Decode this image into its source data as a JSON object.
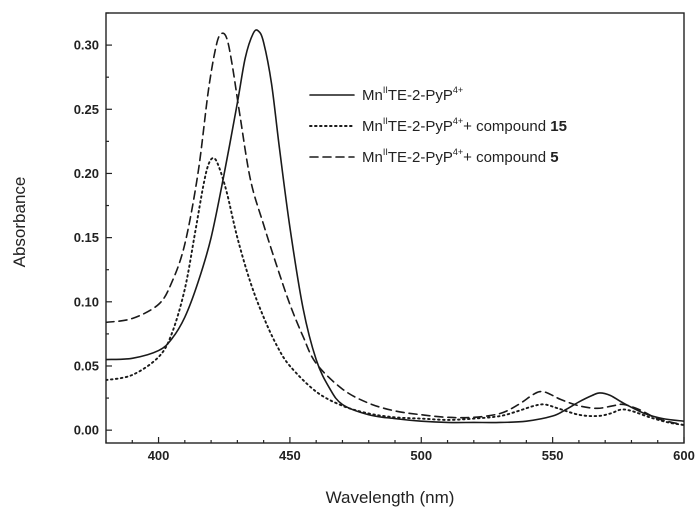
{
  "chart_data": {
    "type": "line",
    "xlabel": "Wavelength (nm)",
    "ylabel": "Absorbance",
    "xlim": [
      380,
      600
    ],
    "ylim": [
      -0.01,
      0.325
    ],
    "xticks": [
      400,
      450,
      500,
      550,
      600
    ],
    "yticks": [
      0.0,
      0.05,
      0.1,
      0.15,
      0.2,
      0.25,
      0.3
    ],
    "ytick_labels": [
      "0.00",
      "0.05",
      "0.10",
      "0.15",
      "0.20",
      "0.25",
      "0.30"
    ],
    "grid": false,
    "legend_position": "top-right",
    "series": [
      {
        "name": "MnIITE-2-PyP4+",
        "legend_parts": [
          {
            "t": "Mn",
            "s": "n"
          },
          {
            "t": "II",
            "s": "sup"
          },
          {
            "t": "TE-2-PyP",
            "s": "n"
          },
          {
            "t": "4+",
            "s": "sup"
          }
        ],
        "style": "solid",
        "x": [
          380,
          390,
          400,
          405,
          410,
          415,
          420,
          425,
          430,
          433,
          436,
          438,
          440,
          443,
          446,
          450,
          455,
          460,
          465,
          470,
          480,
          490,
          500,
          510,
          520,
          530,
          540,
          550,
          555,
          560,
          565,
          568,
          572,
          577,
          585,
          592,
          600
        ],
        "y": [
          0.055,
          0.056,
          0.062,
          0.071,
          0.088,
          0.115,
          0.15,
          0.2,
          0.255,
          0.29,
          0.309,
          0.311,
          0.302,
          0.27,
          0.22,
          0.158,
          0.095,
          0.055,
          0.033,
          0.02,
          0.012,
          0.009,
          0.007,
          0.006,
          0.006,
          0.006,
          0.007,
          0.011,
          0.016,
          0.022,
          0.027,
          0.029,
          0.027,
          0.021,
          0.013,
          0.009,
          0.007
        ]
      },
      {
        "name": "MnIITE-2-PyP4++ compound 15",
        "legend_parts": [
          {
            "t": "Mn",
            "s": "n"
          },
          {
            "t": "II",
            "s": "sup"
          },
          {
            "t": "TE-2-PyP",
            "s": "n"
          },
          {
            "t": "4+",
            "s": "sup"
          },
          {
            "t": "+ compound ",
            "s": "n"
          },
          {
            "t": "15",
            "s": "b"
          }
        ],
        "style": "dotted",
        "x": [
          380,
          390,
          400,
          405,
          410,
          414,
          417,
          419,
          421,
          423,
          426,
          430,
          435,
          440,
          445,
          450,
          460,
          470,
          480,
          490,
          500,
          510,
          520,
          530,
          537,
          543,
          547,
          552,
          560,
          567,
          572,
          576,
          580,
          587,
          594,
          600
        ],
        "y": [
          0.039,
          0.043,
          0.057,
          0.075,
          0.11,
          0.155,
          0.19,
          0.207,
          0.212,
          0.205,
          0.185,
          0.15,
          0.115,
          0.088,
          0.066,
          0.05,
          0.03,
          0.019,
          0.013,
          0.01,
          0.009,
          0.008,
          0.009,
          0.011,
          0.015,
          0.019,
          0.02,
          0.017,
          0.012,
          0.011,
          0.013,
          0.016,
          0.015,
          0.01,
          0.006,
          0.004
        ]
      },
      {
        "name": "MnIITE-2-PyP4++ compound 5",
        "legend_parts": [
          {
            "t": "Mn",
            "s": "n"
          },
          {
            "t": "II",
            "s": "sup"
          },
          {
            "t": "TE-2-PyP",
            "s": "n"
          },
          {
            "t": "4+",
            "s": "sup"
          },
          {
            "t": "+ compound ",
            "s": "n"
          },
          {
            "t": "5",
            "s": "b"
          }
        ],
        "style": "dashed",
        "x": [
          380,
          390,
          400,
          405,
          410,
          415,
          419,
          422,
          424,
          426,
          428,
          431,
          435,
          440,
          445,
          450,
          455,
          460,
          470,
          480,
          490,
          500,
          510,
          520,
          530,
          537,
          542,
          545,
          548,
          553,
          560,
          567,
          573,
          577,
          583,
          590,
          600
        ],
        "y": [
          0.084,
          0.087,
          0.098,
          0.115,
          0.145,
          0.2,
          0.265,
          0.3,
          0.309,
          0.305,
          0.285,
          0.245,
          0.195,
          0.16,
          0.128,
          0.098,
          0.073,
          0.052,
          0.032,
          0.021,
          0.015,
          0.012,
          0.01,
          0.01,
          0.013,
          0.02,
          0.027,
          0.03,
          0.029,
          0.024,
          0.019,
          0.017,
          0.019,
          0.02,
          0.016,
          0.009,
          0.004
        ]
      }
    ]
  }
}
